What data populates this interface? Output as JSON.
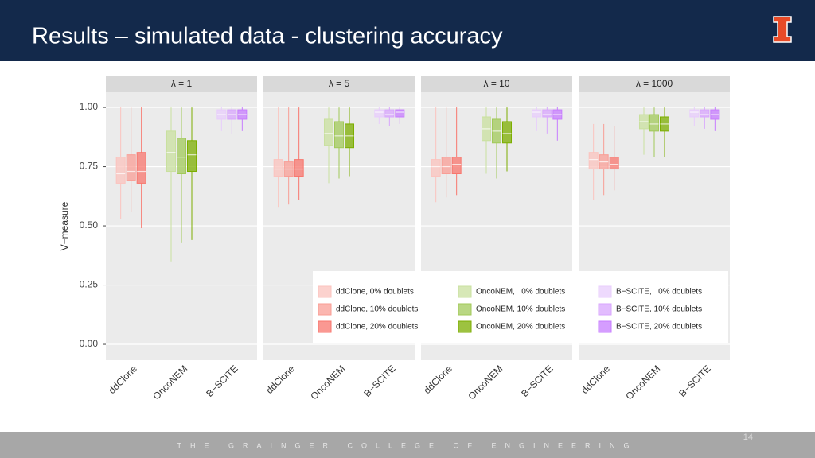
{
  "header": {
    "title": "Results – simulated data - clustering accuracy"
  },
  "footer": {
    "text": "THE GRAINGER COLLEGE OF ENGINEERING",
    "page": "14"
  },
  "chart_data": {
    "type": "box",
    "ylabel": "V−measure",
    "ylim": [
      -0.067,
      1.064
    ],
    "yticks": [
      {
        "value": 0,
        "label": "0.00"
      },
      {
        "value": 0.25,
        "label": "0.25"
      },
      {
        "value": 0.5,
        "label": "0.50"
      },
      {
        "value": 0.75,
        "label": "0.75"
      },
      {
        "value": 1,
        "label": "1.00"
      }
    ],
    "grid": true,
    "categories": [
      "ddClone",
      "OncoNEM",
      "B−SCITE"
    ],
    "series": [
      {
        "name": "ddClone, 0% doublets",
        "color": "#fbc3be"
      },
      {
        "name": "ddClone, 10% doublets",
        "color": "#f99d95"
      },
      {
        "name": "ddClone, 20% doublets",
        "color": "#f8766d"
      },
      {
        "name": "OncoNEM,   0% doublets",
        "color": "#c9e09f"
      },
      {
        "name": "OncoNEM, 10% doublets",
        "color": "#a2c95a"
      },
      {
        "name": "OncoNEM, 20% doublets",
        "color": "#7cae00"
      },
      {
        "name": "B−SCITE,   0% doublets",
        "color": "#e8cdfc"
      },
      {
        "name": "B−SCITE, 10% doublets",
        "color": "#d8a6fd"
      },
      {
        "name": "B−SCITE, 20% doublets",
        "color": "#c77cff"
      }
    ],
    "facets": [
      {
        "title": "λ = 1",
        "boxes": [
          {
            "q1": 0.68,
            "median": 0.72,
            "q3": 0.79,
            "whislo": 0.53,
            "whishi": 1.0
          },
          {
            "q1": 0.69,
            "median": 0.73,
            "q3": 0.8,
            "whislo": 0.56,
            "whishi": 1.0
          },
          {
            "q1": 0.68,
            "median": 0.73,
            "q3": 0.81,
            "whislo": 0.49,
            "whishi": 1.0
          },
          {
            "q1": 0.73,
            "median": 0.81,
            "q3": 0.9,
            "whislo": 0.35,
            "whishi": 1.0
          },
          {
            "q1": 0.72,
            "median": 0.79,
            "q3": 0.87,
            "whislo": 0.43,
            "whishi": 1.0
          },
          {
            "q1": 0.73,
            "median": 0.8,
            "q3": 0.86,
            "whislo": 0.44,
            "whishi": 1.0
          },
          {
            "q1": 0.95,
            "median": 0.97,
            "q3": 0.99,
            "whislo": 0.9,
            "whishi": 1.0
          },
          {
            "q1": 0.95,
            "median": 0.97,
            "q3": 0.99,
            "whislo": 0.89,
            "whishi": 1.0
          },
          {
            "q1": 0.95,
            "median": 0.97,
            "q3": 0.99,
            "whislo": 0.9,
            "whishi": 1.0
          }
        ]
      },
      {
        "title": "λ = 5",
        "boxes": [
          {
            "q1": 0.71,
            "median": 0.74,
            "q3": 0.78,
            "whislo": 0.58,
            "whishi": 1.0
          },
          {
            "q1": 0.71,
            "median": 0.74,
            "q3": 0.77,
            "whislo": 0.59,
            "whishi": 1.0
          },
          {
            "q1": 0.71,
            "median": 0.74,
            "q3": 0.78,
            "whislo": 0.61,
            "whishi": 1.0
          },
          {
            "q1": 0.84,
            "median": 0.89,
            "q3": 0.95,
            "whislo": 0.68,
            "whishi": 1.0
          },
          {
            "q1": 0.83,
            "median": 0.88,
            "q3": 0.94,
            "whislo": 0.7,
            "whishi": 1.0
          },
          {
            "q1": 0.83,
            "median": 0.88,
            "q3": 0.93,
            "whislo": 0.71,
            "whishi": 1.0
          },
          {
            "q1": 0.96,
            "median": 0.98,
            "q3": 0.99,
            "whislo": 0.93,
            "whishi": 1.0
          },
          {
            "q1": 0.96,
            "median": 0.97,
            "q3": 0.99,
            "whislo": 0.92,
            "whishi": 1.0
          },
          {
            "q1": 0.96,
            "median": 0.98,
            "q3": 0.99,
            "whislo": 0.93,
            "whishi": 1.0
          }
        ]
      },
      {
        "title": "λ = 10",
        "boxes": [
          {
            "q1": 0.71,
            "median": 0.75,
            "q3": 0.78,
            "whislo": 0.6,
            "whishi": 1.0
          },
          {
            "q1": 0.72,
            "median": 0.75,
            "q3": 0.79,
            "whislo": 0.62,
            "whishi": 1.0
          },
          {
            "q1": 0.72,
            "median": 0.76,
            "q3": 0.79,
            "whislo": 0.63,
            "whishi": 1.0
          },
          {
            "q1": 0.86,
            "median": 0.91,
            "q3": 0.96,
            "whislo": 0.72,
            "whishi": 1.0
          },
          {
            "q1": 0.85,
            "median": 0.9,
            "q3": 0.95,
            "whislo": 0.7,
            "whishi": 1.0
          },
          {
            "q1": 0.85,
            "median": 0.89,
            "q3": 0.94,
            "whislo": 0.73,
            "whishi": 1.0
          },
          {
            "q1": 0.96,
            "median": 0.98,
            "q3": 0.99,
            "whislo": 0.9,
            "whishi": 1.0
          },
          {
            "q1": 0.96,
            "median": 0.97,
            "q3": 0.99,
            "whislo": 0.89,
            "whishi": 1.0
          },
          {
            "q1": 0.95,
            "median": 0.97,
            "q3": 0.99,
            "whislo": 0.86,
            "whishi": 1.0
          }
        ]
      },
      {
        "title": "λ = 1000",
        "boxes": [
          {
            "q1": 0.74,
            "median": 0.78,
            "q3": 0.81,
            "whislo": 0.61,
            "whishi": 0.93
          },
          {
            "q1": 0.74,
            "median": 0.77,
            "q3": 0.8,
            "whislo": 0.63,
            "whishi": 0.93
          },
          {
            "q1": 0.74,
            "median": 0.76,
            "q3": 0.79,
            "whislo": 0.65,
            "whishi": 0.92
          },
          {
            "q1": 0.91,
            "median": 0.94,
            "q3": 0.97,
            "whislo": 0.8,
            "whishi": 1.0
          },
          {
            "q1": 0.9,
            "median": 0.93,
            "q3": 0.97,
            "whislo": 0.79,
            "whishi": 1.0
          },
          {
            "q1": 0.9,
            "median": 0.93,
            "q3": 0.96,
            "whislo": 0.79,
            "whishi": 1.0
          },
          {
            "q1": 0.96,
            "median": 0.98,
            "q3": 0.99,
            "whislo": 0.92,
            "whishi": 1.0
          },
          {
            "q1": 0.96,
            "median": 0.97,
            "q3": 0.99,
            "whislo": 0.91,
            "whishi": 1.0
          },
          {
            "q1": 0.95,
            "median": 0.97,
            "q3": 0.99,
            "whislo": 0.9,
            "whishi": 1.0
          }
        ]
      }
    ]
  }
}
